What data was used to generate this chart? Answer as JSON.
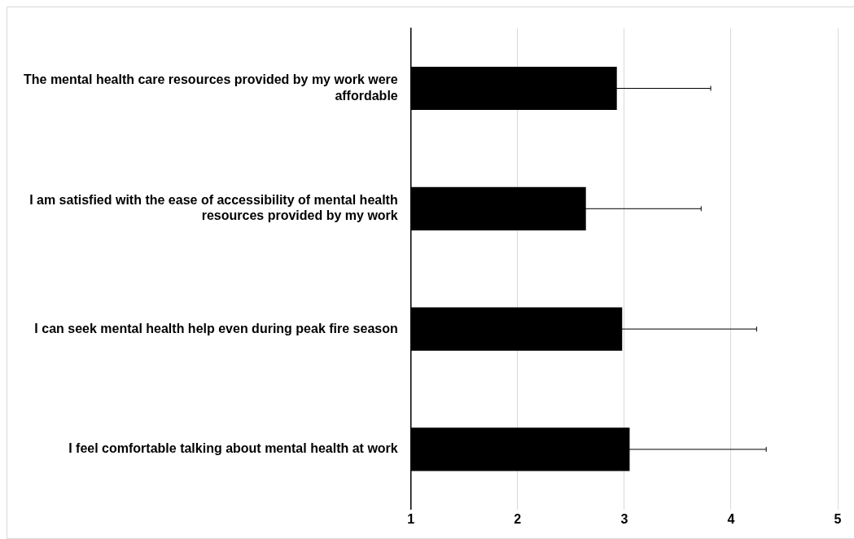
{
  "chart_data": {
    "type": "bar",
    "orientation": "horizontal",
    "categories": [
      "The mental health care resources provided by my work were affordable",
      "I am satisfied with the ease of accessibility of mental health resources provided by my work",
      "I can seek mental health help even during peak fire season",
      "I feel comfortable talking about mental health at work"
    ],
    "values": [
      2.93,
      2.64,
      2.98,
      3.05
    ],
    "errors": [
      0.88,
      1.08,
      1.26,
      1.28
    ],
    "color": "#000000",
    "xlim": [
      1,
      5
    ],
    "xticks": [
      1,
      2,
      3,
      4,
      5
    ],
    "grid": "x",
    "legend": false
  }
}
